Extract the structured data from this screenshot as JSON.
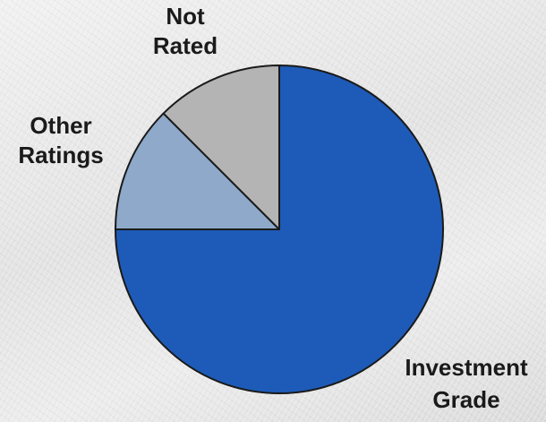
{
  "chart_data": {
    "type": "pie",
    "slices": [
      {
        "label": "Investment Grade",
        "label_lines": [
          "Investment",
          "Grade"
        ],
        "value": 75,
        "color": "#1e5bb8"
      },
      {
        "label": "Other Ratings",
        "label_lines": [
          "Other",
          "Ratings"
        ],
        "value": 12.5,
        "color": "#8ea9c9"
      },
      {
        "label": "Not Rated",
        "label_lines": [
          "Not",
          "Rated"
        ],
        "value": 12.5,
        "color": "#b4b4b4"
      }
    ],
    "start_angle_deg": 0,
    "direction": "clockwise",
    "legend": "none",
    "title": ""
  }
}
